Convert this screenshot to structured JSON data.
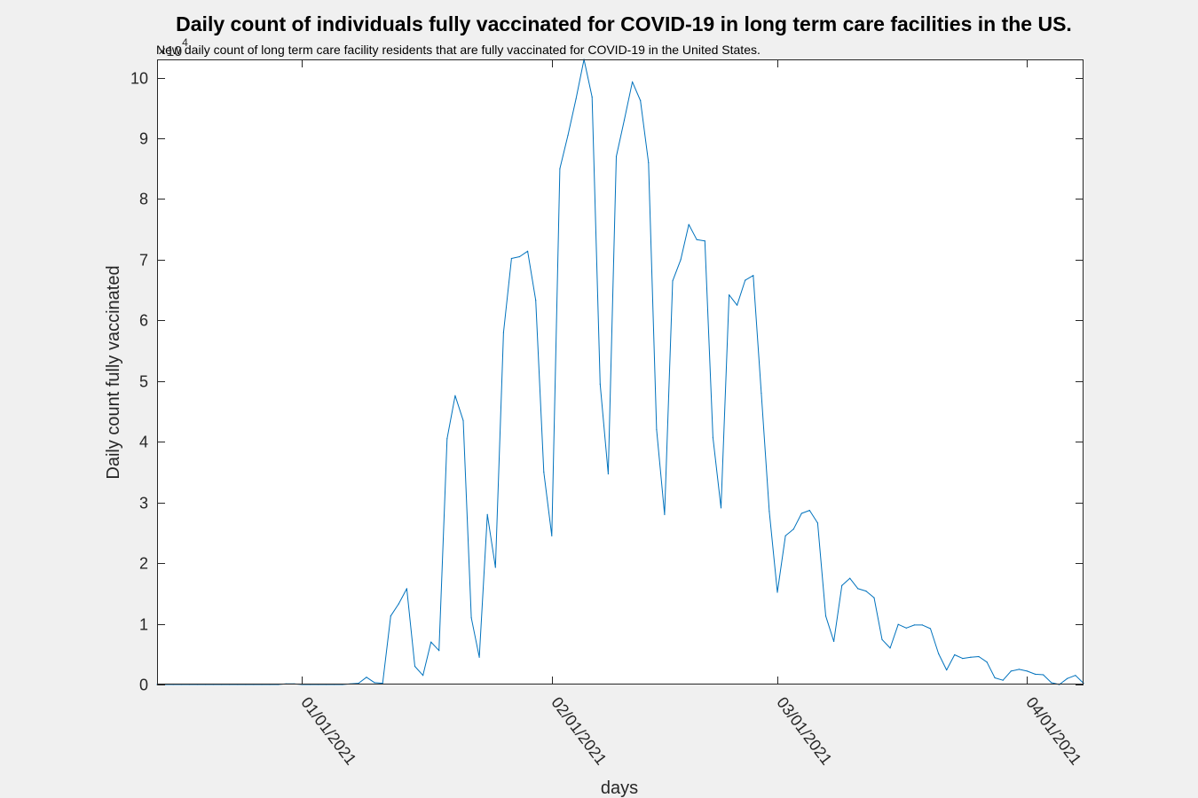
{
  "chart_data": {
    "type": "line",
    "title": "Daily count of individuals fully vaccinated for COVID-19 in long term care facilities in the US.",
    "subtitle": "New daily count of long term care facility residents that are fully vaccinated for COVID-19 in the United States.",
    "xlabel": "days",
    "ylabel": "Daily count fully vaccinated",
    "y_multiplier_label": "×10",
    "y_multiplier_exponent": "4",
    "ylim": [
      0,
      10.3
    ],
    "y_scale_factor": 10000,
    "yticks": [
      0,
      1,
      2,
      3,
      4,
      5,
      6,
      7,
      8,
      9,
      10
    ],
    "xlim": [
      "2020-12-14",
      "2021-04-08"
    ],
    "xticks": [
      {
        "date": "2021-01-01",
        "label": "01/01/2021"
      },
      {
        "date": "2021-02-01",
        "label": "02/01/2021"
      },
      {
        "date": "2021-03-01",
        "label": "03/01/2021"
      },
      {
        "date": "2021-04-01",
        "label": "04/01/2021"
      }
    ],
    "grid": false,
    "series": [
      {
        "color": "#0072BD",
        "points": [
          [
            "2020-12-14",
            0
          ],
          [
            "2020-12-15",
            0
          ],
          [
            "2020-12-16",
            0
          ],
          [
            "2020-12-17",
            0
          ],
          [
            "2020-12-18",
            0
          ],
          [
            "2020-12-19",
            0
          ],
          [
            "2020-12-20",
            0
          ],
          [
            "2020-12-21",
            0
          ],
          [
            "2020-12-22",
            0
          ],
          [
            "2020-12-23",
            0
          ],
          [
            "2020-12-24",
            0
          ],
          [
            "2020-12-25",
            0
          ],
          [
            "2020-12-26",
            0
          ],
          [
            "2020-12-27",
            0
          ],
          [
            "2020-12-28",
            0
          ],
          [
            "2020-12-29",
            0
          ],
          [
            "2020-12-30",
            0.01
          ],
          [
            "2020-12-31",
            0.01
          ],
          [
            "2021-01-01",
            0
          ],
          [
            "2021-01-02",
            0
          ],
          [
            "2021-01-03",
            0
          ],
          [
            "2021-01-04",
            0
          ],
          [
            "2021-01-05",
            0
          ],
          [
            "2021-01-06",
            0
          ],
          [
            "2021-01-07",
            0.01
          ],
          [
            "2021-01-08",
            0.02
          ],
          [
            "2021-01-09",
            0.12
          ],
          [
            "2021-01-10",
            0.03
          ],
          [
            "2021-01-11",
            0.02
          ],
          [
            "2021-01-12",
            1.13
          ],
          [
            "2021-01-13",
            1.33
          ],
          [
            "2021-01-14",
            1.58
          ],
          [
            "2021-01-15",
            0.3
          ],
          [
            "2021-01-16",
            0.15
          ],
          [
            "2021-01-17",
            0.7
          ],
          [
            "2021-01-18",
            0.56
          ],
          [
            "2021-01-19",
            4.05
          ],
          [
            "2021-01-20",
            4.76
          ],
          [
            "2021-01-21",
            4.35
          ],
          [
            "2021-01-22",
            1.1
          ],
          [
            "2021-01-23",
            0.45
          ],
          [
            "2021-01-24",
            2.8
          ],
          [
            "2021-01-25",
            1.93
          ],
          [
            "2021-01-26",
            5.8
          ],
          [
            "2021-01-27",
            7.02
          ],
          [
            "2021-01-28",
            7.05
          ],
          [
            "2021-01-29",
            7.14
          ],
          [
            "2021-01-30",
            6.33
          ],
          [
            "2021-01-31",
            3.5
          ],
          [
            "2021-02-01",
            2.45
          ],
          [
            "2021-02-02",
            8.5
          ],
          [
            "2021-02-03",
            9.05
          ],
          [
            "2021-02-04",
            9.65
          ],
          [
            "2021-02-05",
            10.3
          ],
          [
            "2021-02-06",
            9.68
          ],
          [
            "2021-02-07",
            4.95
          ],
          [
            "2021-02-08",
            3.47
          ],
          [
            "2021-02-09",
            8.7
          ],
          [
            "2021-02-10",
            9.3
          ],
          [
            "2021-02-11",
            9.93
          ],
          [
            "2021-02-12",
            9.62
          ],
          [
            "2021-02-13",
            8.6
          ],
          [
            "2021-02-14",
            4.2
          ],
          [
            "2021-02-15",
            2.8
          ],
          [
            "2021-02-16",
            6.65
          ],
          [
            "2021-02-17",
            7.0
          ],
          [
            "2021-02-18",
            7.58
          ],
          [
            "2021-02-19",
            7.33
          ],
          [
            "2021-02-20",
            7.31
          ],
          [
            "2021-02-21",
            4.07
          ],
          [
            "2021-02-22",
            2.91
          ],
          [
            "2021-02-23",
            6.42
          ],
          [
            "2021-02-24",
            6.25
          ],
          [
            "2021-02-25",
            6.66
          ],
          [
            "2021-02-26",
            6.74
          ],
          [
            "2021-02-27",
            4.8
          ],
          [
            "2021-02-28",
            2.85
          ],
          [
            "2021-03-01",
            1.52
          ],
          [
            "2021-03-02",
            2.45
          ],
          [
            "2021-03-03",
            2.56
          ],
          [
            "2021-03-04",
            2.82
          ],
          [
            "2021-03-05",
            2.87
          ],
          [
            "2021-03-06",
            2.66
          ],
          [
            "2021-03-07",
            1.13
          ],
          [
            "2021-03-08",
            0.71
          ],
          [
            "2021-03-09",
            1.63
          ],
          [
            "2021-03-10",
            1.75
          ],
          [
            "2021-03-11",
            1.58
          ],
          [
            "2021-03-12",
            1.54
          ],
          [
            "2021-03-13",
            1.43
          ],
          [
            "2021-03-14",
            0.74
          ],
          [
            "2021-03-15",
            0.6
          ],
          [
            "2021-03-16",
            0.99
          ],
          [
            "2021-03-17",
            0.93
          ],
          [
            "2021-03-18",
            0.98
          ],
          [
            "2021-03-19",
            0.98
          ],
          [
            "2021-03-20",
            0.92
          ],
          [
            "2021-03-21",
            0.51
          ],
          [
            "2021-03-22",
            0.24
          ],
          [
            "2021-03-23",
            0.49
          ],
          [
            "2021-03-24",
            0.43
          ],
          [
            "2021-03-25",
            0.45
          ],
          [
            "2021-03-26",
            0.46
          ],
          [
            "2021-03-27",
            0.37
          ],
          [
            "2021-03-28",
            0.11
          ],
          [
            "2021-03-29",
            0.07
          ],
          [
            "2021-03-30",
            0.22
          ],
          [
            "2021-03-31",
            0.25
          ],
          [
            "2021-04-01",
            0.22
          ],
          [
            "2021-04-02",
            0.17
          ],
          [
            "2021-04-03",
            0.16
          ],
          [
            "2021-04-04",
            0.03
          ],
          [
            "2021-04-05",
            0.0
          ],
          [
            "2021-04-06",
            0.1
          ],
          [
            "2021-04-07",
            0.15
          ],
          [
            "2021-04-08",
            0.02
          ]
        ]
      }
    ]
  }
}
